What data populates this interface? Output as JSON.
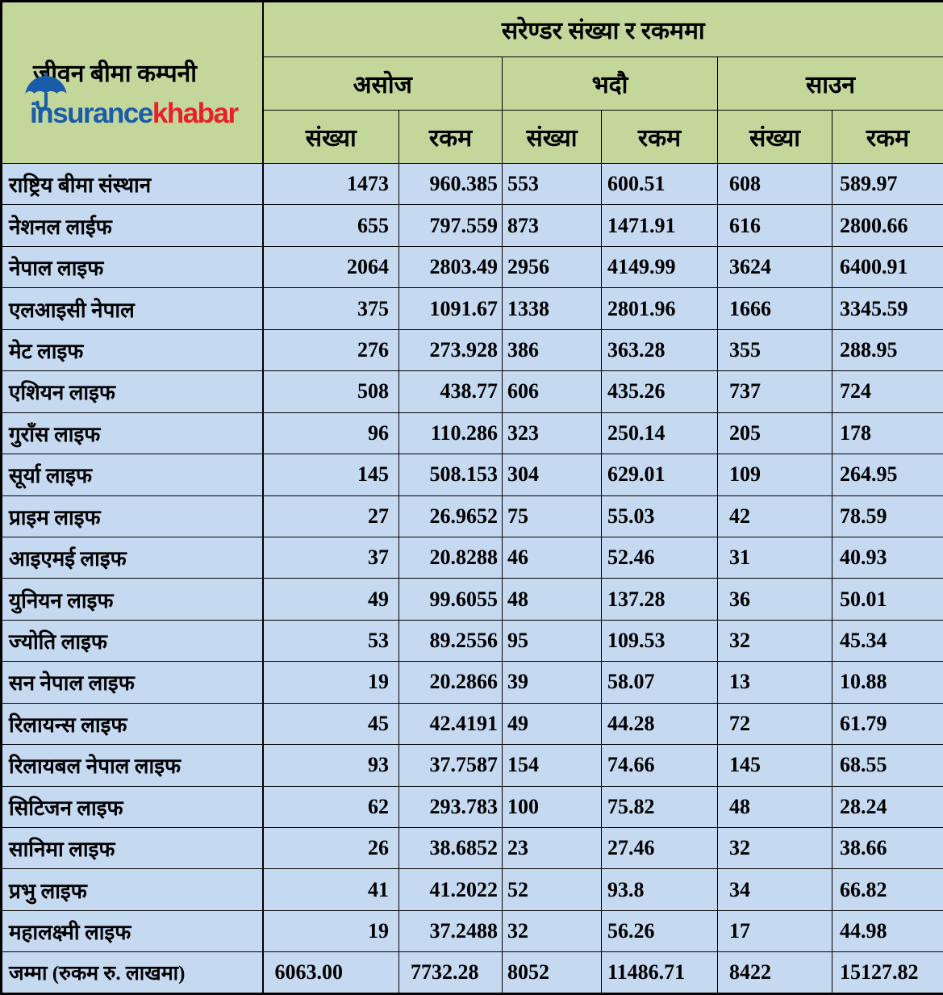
{
  "header": {
    "company_column_title": "जीवन बीमा कम्पनी",
    "months": [
      "असोज",
      "भदौ",
      "साउन"
    ],
    "sub_headers": [
      "संख्या",
      "रकम"
    ]
  },
  "logo": {
    "text_blue": "insurance",
    "text_red": "khabar",
    "icon": "umbrella-icon",
    "blue_color": "#1b5ca9",
    "red_color": "#e62129"
  },
  "colors": {
    "header_bg": "#c4d79b",
    "row_bg": "#c5d9f1",
    "border": "#000000"
  },
  "chart_data": {
    "type": "table",
    "title": "सरेण्डर संख्या र रकममा",
    "columns": [
      "जीवन बीमा कम्पनी",
      "असोज संख्या",
      "असोज रकम",
      "भदौ संख्या",
      "भदौ रकम",
      "साउन संख्या",
      "साउन रकम"
    ],
    "rows": [
      [
        "राष्ट्रिय बीमा संस्थान",
        "1473",
        "960.385",
        "553",
        "600.51",
        "608",
        "589.97"
      ],
      [
        "नेशनल लाईफ",
        "655",
        "797.559",
        "873",
        "1471.91",
        "616",
        "2800.66"
      ],
      [
        "नेपाल लाइफ",
        "2064",
        "2803.49",
        "2956",
        "4149.99",
        "3624",
        "6400.91"
      ],
      [
        "एलआइसी नेपाल",
        "375",
        "1091.67",
        "1338",
        "2801.96",
        "1666",
        "3345.59"
      ],
      [
        "मेट लाइफ",
        "276",
        "273.928",
        "386",
        "363.28",
        "355",
        "288.95"
      ],
      [
        "एशियन लाइफ",
        "508",
        "438.77",
        "606",
        "435.26",
        "737",
        "724"
      ],
      [
        "गुराँस लाइफ",
        "96",
        "110.286",
        "323",
        "250.14",
        "205",
        "178"
      ],
      [
        "सूर्या लाइफ",
        "145",
        "508.153",
        "304",
        "629.01",
        "109",
        "264.95"
      ],
      [
        "प्राइम लाइफ",
        "27",
        "26.9652",
        "75",
        "55.03",
        "42",
        "78.59"
      ],
      [
        "आइएमई लाइफ",
        "37",
        "20.8288",
        "46",
        "52.46",
        "31",
        "40.93"
      ],
      [
        "युनियन लाइफ",
        "49",
        "99.6055",
        "48",
        "137.28",
        "36",
        "50.01"
      ],
      [
        "ज्योति लाइफ",
        "53",
        "89.2556",
        "95",
        "109.53",
        "32",
        "45.34"
      ],
      [
        "सन नेपाल लाइफ",
        "19",
        "20.2866",
        "39",
        "58.07",
        "13",
        "10.88"
      ],
      [
        "रिलायन्स लाइफ",
        "45",
        "42.4191",
        "49",
        "44.28",
        "72",
        "61.79"
      ],
      [
        "रिलायबल नेपाल लाइफ",
        "93",
        "37.7587",
        "154",
        "74.66",
        "145",
        "68.55"
      ],
      [
        "सिटिजन लाइफ",
        "62",
        "293.783",
        "100",
        "75.82",
        "48",
        "28.24"
      ],
      [
        "सानिमा लाइफ",
        "26",
        "38.6852",
        "23",
        "27.46",
        "32",
        "38.66"
      ],
      [
        "प्रभु लाइफ",
        "41",
        "41.2022",
        "52",
        "93.8",
        "34",
        "66.82"
      ],
      [
        "महालक्ष्मी लाइफ",
        "19",
        "37.2488",
        "32",
        "56.26",
        "17",
        "44.98"
      ]
    ],
    "total_row": [
      "जम्मा (रुकम रु. लाखमा)",
      "6063.00",
      "7732.28",
      "8052",
      "11486.71",
      "8422",
      "15127.82"
    ]
  }
}
